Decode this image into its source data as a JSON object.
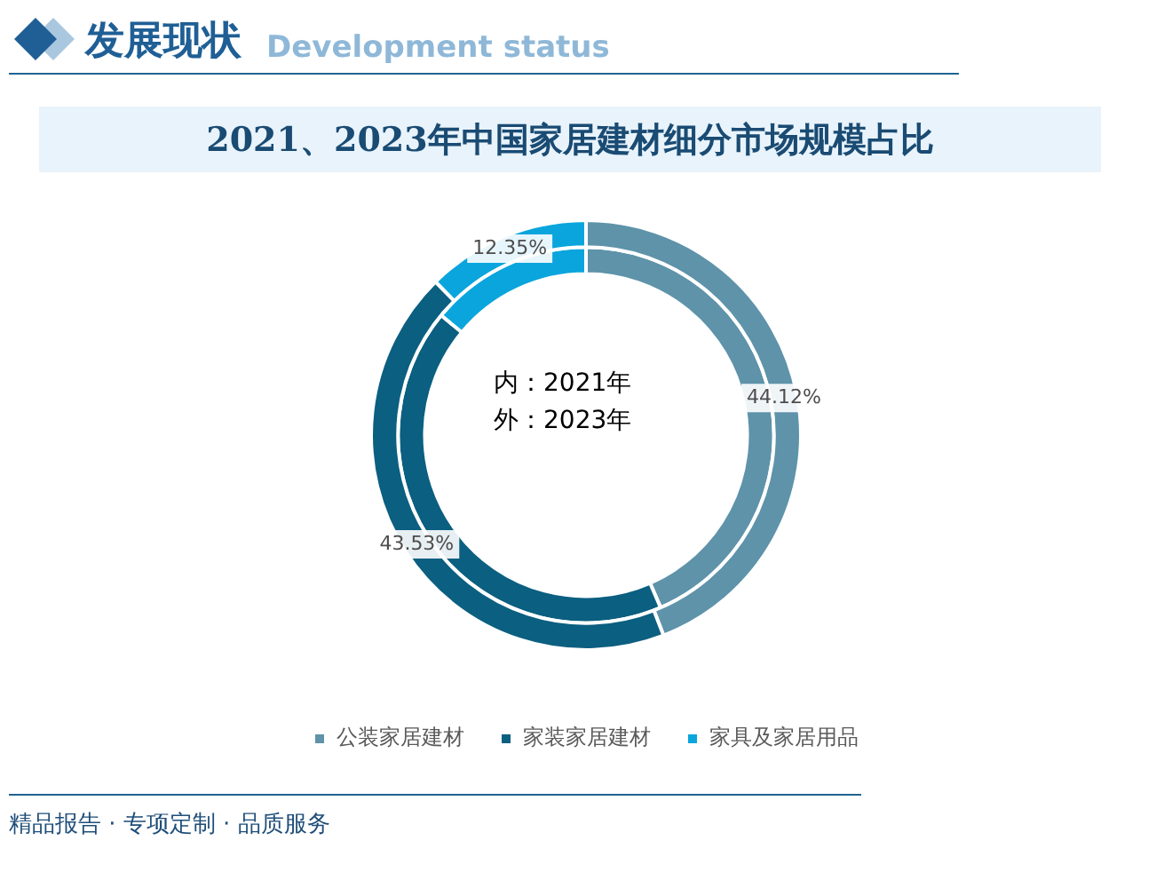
{
  "chart_data": {
    "type": "donut",
    "title": "2021、2023年中国家居建材细分市场规模占比",
    "categories": [
      "公装家居建材",
      "家装家居建材",
      "家具及家居用品"
    ],
    "colors": [
      "#5e93aa",
      "#0b5f80",
      "#0aa5dd"
    ],
    "series": [
      {
        "values": [
          44.12,
          43.53,
          12.35
        ],
        "value_labels": [
          "44.12%",
          "43.53%",
          "12.35%"
        ]
      },
      {
        "values": [
          43.5,
          42.5,
          14
        ]
      }
    ],
    "legend": "bottom",
    "annotations": [
      "发展现状",
      "Development status",
      "内：2021年",
      "外：2023年",
      "精品报告 · 专项定制 · 品质服务"
    ]
  }
}
